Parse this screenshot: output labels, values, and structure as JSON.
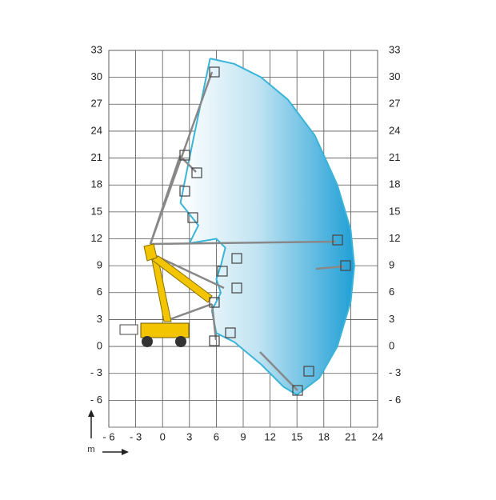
{
  "chart_data": {
    "type": "area",
    "x_label": "m",
    "xlim": [
      -6,
      24
    ],
    "ylim": [
      -9,
      33
    ],
    "xticks": [
      {
        "value": -6,
        "label": "- 6"
      },
      {
        "value": -3,
        "label": "- 3"
      },
      0,
      3,
      6,
      9,
      12,
      15,
      18,
      21,
      24
    ],
    "yticks": [
      {
        "value": -6,
        "label": "- 6"
      },
      {
        "value": -3,
        "label": "- 3"
      },
      0,
      3,
      6,
      9,
      12,
      15,
      18,
      21,
      24,
      27,
      30,
      33
    ],
    "grid": true,
    "color": "#3ab4d8",
    "x": [
      5.3,
      8,
      11,
      14,
      17,
      19.5,
      21,
      21.4,
      21,
      19.5,
      17.5,
      15,
      13.5,
      11,
      8,
      6,
      5.5,
      6.5,
      6,
      6.5,
      7,
      6,
      3,
      4,
      2,
      3,
      5.3
    ],
    "values": [
      32.1,
      31.5,
      30,
      27.5,
      23.5,
      18,
      13,
      9,
      5,
      0,
      -3.5,
      -5.4,
      -4.5,
      -2,
      0.5,
      1.5,
      4,
      6,
      7.5,
      9,
      11,
      12,
      11.5,
      13.5,
      16,
      21,
      32.1
    ]
  }
}
